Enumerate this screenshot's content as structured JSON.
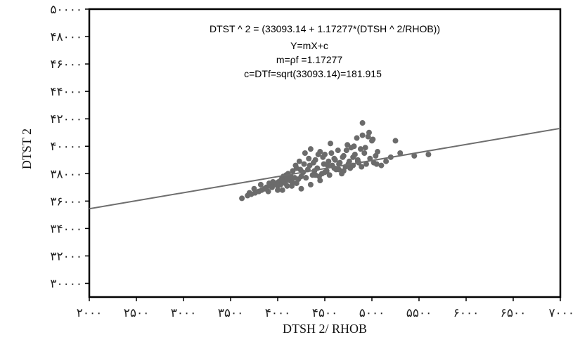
{
  "chart_data": {
    "type": "scatter",
    "xlabel": "DTSH 2/ RHOB",
    "ylabel": "DTST 2",
    "xlim": [
      2000,
      7000
    ],
    "ylim": [
      29000,
      50000
    ],
    "x_ticks": [
      2000,
      2500,
      3000,
      3500,
      4000,
      4500,
      5000,
      5500,
      6000,
      6500,
      7000
    ],
    "x_tick_labels": [
      "۲۰۰۰",
      "۲۵۰۰",
      "۳۰۰۰",
      "۳۵۰۰",
      "۴۰۰۰",
      "۴۵۰۰",
      "۵۰۰۰",
      "۵۵۰۰",
      "۶۰۰۰",
      "۶۵۰۰",
      "۷۰۰۰"
    ],
    "y_ticks": [
      30000,
      32000,
      34000,
      36000,
      38000,
      40000,
      42000,
      44000,
      46000,
      48000,
      50000
    ],
    "y_tick_labels": [
      "۳۰۰۰۰",
      "۳۲۰۰۰",
      "۳۴۰۰۰",
      "۳۶۰۰۰",
      "۳۸۰۰۰",
      "۴۰۰۰۰",
      "۴۲۰۰۰",
      "۴۴۰۰۰",
      "۴۶۰۰۰",
      "۴۸۰۰۰",
      "۵۰۰۰۰"
    ],
    "grid": false,
    "annotations": [
      "DTST ^ 2 = (33093.14 + 1.17277*(DTSH ^ 2/RHOB))",
      "Y=mX+c",
      "m=ρf =1.17277",
      "c=DTf=sqrt(33093.14)=181.915"
    ],
    "trend_line": {
      "slope": 1.17277,
      "intercept": 33093.14
    },
    "colors": {
      "points": "#6b6b6b",
      "line": "#6e6e6e",
      "frame": "#000000"
    },
    "points": {
      "x": [
        3620,
        3680,
        3720,
        3760,
        3800,
        3830,
        3860,
        3880,
        3900,
        3920,
        3940,
        3960,
        3980,
        4000,
        4010,
        4030,
        4050,
        4060,
        4080,
        4100,
        4110,
        4130,
        4150,
        4160,
        4180,
        4200,
        4220,
        4230,
        4250,
        4270,
        4290,
        4300,
        4320,
        4340,
        4350,
        4370,
        4390,
        4400,
        4420,
        4440,
        4450,
        4470,
        4490,
        4500,
        4520,
        4540,
        4560,
        4580,
        4600,
        4620,
        4640,
        4660,
        4680,
        4700,
        4720,
        4740,
        4760,
        4780,
        4800,
        4820,
        4840,
        4860,
        4880,
        4900,
        4920,
        4940,
        4960,
        4980,
        5000,
        5020,
        5040,
        5060,
        5100,
        5150,
        5200,
        5250,
        5300,
        5450,
        5600,
        3700,
        3750,
        3820,
        3870,
        3910,
        3950,
        3990,
        4040,
        4090,
        4140,
        4190,
        4240,
        4280,
        4330,
        4380,
        4430,
        4480,
        4530,
        4570,
        4610,
        4650,
        4690,
        4730,
        4770,
        4810,
        4850,
        4890,
        4930,
        4970,
        5010,
        5050,
        4000,
        4100,
        4200,
        4300,
        4400,
        4500,
        4600,
        4700,
        4800,
        4900,
        4250,
        4350,
        4450,
        4550,
        4650,
        4750,
        4850,
        4150,
        4050
      ],
      "y": [
        36200,
        36400,
        36500,
        36600,
        36700,
        36800,
        36900,
        37000,
        36700,
        37100,
        37000,
        37200,
        37300,
        37100,
        37400,
        37200,
        37500,
        37800,
        37300,
        37600,
        38000,
        37500,
        37400,
        38200,
        37700,
        38400,
        37600,
        38900,
        37800,
        38100,
        39500,
        37700,
        38300,
        38600,
        39800,
        37900,
        38200,
        39000,
        38400,
        37800,
        39600,
        38000,
        38700,
        39400,
        38200,
        38900,
        40200,
        38600,
        39100,
        38300,
        39700,
        38800,
        38000,
        39300,
        38500,
        40100,
        38900,
        39900,
        38600,
        39400,
        40600,
        38800,
        39800,
        41700,
        39500,
        38700,
        40700,
        39100,
        40400,
        38800,
        39300,
        39600,
        38600,
        38900,
        39200,
        40400,
        39500,
        39300,
        39400,
        36600,
        36900,
        37200,
        36900,
        37300,
        37400,
        37200,
        37600,
        37900,
        37800,
        38600,
        38300,
        38700,
        39100,
        38800,
        39400,
        39200,
        38600,
        39500,
        39000,
        38700,
        39200,
        39700,
        38400,
        40000,
        39000,
        38500,
        39900,
        41000,
        40500,
        38700,
        36800,
        37100,
        37300,
        37700,
        37900,
        38100,
        38400,
        38200,
        39200,
        40800,
        36900,
        37200,
        37500,
        37900,
        38300,
        38700,
        38900,
        37100,
        36800
      ]
    }
  }
}
